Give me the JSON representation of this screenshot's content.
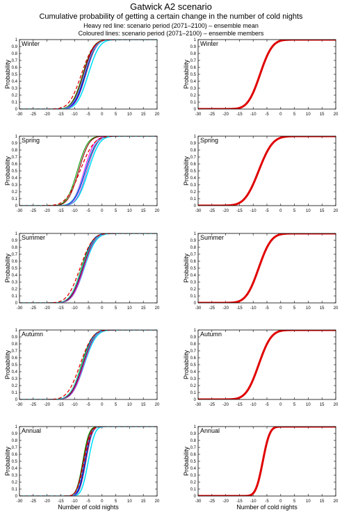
{
  "title": "Gatwick A2 scenario",
  "subtitle": "Cumulative probability of getting a certain change in the number of cold nights",
  "notes": [
    "Heavy red line: scenario period (2071–2100) – ensemble mean",
    "Coloured lines: scenario period (2071–2100) – ensemble members"
  ],
  "xlabel": "Number of cold nights",
  "ylabel": "Probability",
  "xlim": [
    -30,
    20
  ],
  "ylim": [
    0,
    1
  ],
  "x_ticks": [
    -30,
    -25,
    -20,
    -15,
    -10,
    -5,
    0,
    5,
    10,
    15,
    20
  ],
  "y_ticks": [
    0,
    0.1,
    0.2,
    0.3,
    0.4,
    0.5,
    0.6,
    0.7,
    0.8,
    0.9,
    1
  ],
  "mean_color": "#e00000",
  "member_colors": [
    "#00e0ff",
    "#000000",
    "#009900",
    "#ff00ff",
    "#0000ff",
    "#8b0000",
    "#9966cc",
    "#33cccc"
  ],
  "chart_data": [
    {
      "type": "line",
      "title": "Winter",
      "members": [
        {
          "color": "#00e0ff",
          "mu": -5.0,
          "s": 3.2
        },
        {
          "color": "#000000",
          "mu": -6.0,
          "s": 3.0
        },
        {
          "color": "#009900",
          "mu": -7.0,
          "s": 3.1
        },
        {
          "color": "#ff00ff",
          "mu": -6.5,
          "s": 3.0
        },
        {
          "color": "#0000ff",
          "mu": -6.2,
          "s": 3.0
        },
        {
          "color": "#8b0000",
          "mu": -6.8,
          "s": 3.1
        },
        {
          "color": "#9966cc",
          "mu": -5.8,
          "s": 3.0
        },
        {
          "color": "#33cccc",
          "mu": -6.4,
          "s": 3.2
        }
      ],
      "mean": {
        "mu": -7.5,
        "s": 3.5
      }
    },
    {
      "type": "line",
      "title": "Spring",
      "members": [
        {
          "color": "#00e0ff",
          "mu": -5.0,
          "s": 3.2
        },
        {
          "color": "#000000",
          "mu": -6.0,
          "s": 3.2
        },
        {
          "color": "#009900",
          "mu": -9.0,
          "s": 3.0
        },
        {
          "color": "#ff00ff",
          "mu": -6.5,
          "s": 3.0
        },
        {
          "color": "#0000ff",
          "mu": -6.0,
          "s": 3.1
        },
        {
          "color": "#8b0000",
          "mu": -8.5,
          "s": 3.0
        },
        {
          "color": "#9966cc",
          "mu": -5.5,
          "s": 3.0
        },
        {
          "color": "#33cccc",
          "mu": -6.2,
          "s": 3.2
        }
      ],
      "mean": {
        "mu": -8.0,
        "s": 4.0
      }
    },
    {
      "type": "line",
      "title": "Summer",
      "members": [
        {
          "color": "#00e0ff",
          "mu": -6.5,
          "s": 3.4
        },
        {
          "color": "#000000",
          "mu": -7.0,
          "s": 3.2
        },
        {
          "color": "#009900",
          "mu": -7.5,
          "s": 3.2
        },
        {
          "color": "#ff00ff",
          "mu": -6.8,
          "s": 3.2
        },
        {
          "color": "#0000ff",
          "mu": -7.2,
          "s": 3.1
        },
        {
          "color": "#8b0000",
          "mu": -7.0,
          "s": 3.3
        },
        {
          "color": "#9966cc",
          "mu": -6.6,
          "s": 3.2
        },
        {
          "color": "#33cccc",
          "mu": -7.3,
          "s": 3.4
        }
      ],
      "mean": {
        "mu": -8.0,
        "s": 3.6
      }
    },
    {
      "type": "line",
      "title": "Autumn",
      "members": [
        {
          "color": "#00e0ff",
          "mu": -6.5,
          "s": 3.4
        },
        {
          "color": "#000000",
          "mu": -7.0,
          "s": 3.2
        },
        {
          "color": "#009900",
          "mu": -7.5,
          "s": 3.2
        },
        {
          "color": "#ff00ff",
          "mu": -6.8,
          "s": 3.2
        },
        {
          "color": "#0000ff",
          "mu": -7.2,
          "s": 3.1
        },
        {
          "color": "#8b0000",
          "mu": -7.0,
          "s": 3.3
        },
        {
          "color": "#9966cc",
          "mu": -6.6,
          "s": 3.2
        },
        {
          "color": "#33cccc",
          "mu": -7.3,
          "s": 3.4
        }
      ],
      "mean": {
        "mu": -8.0,
        "s": 3.6
      }
    },
    {
      "type": "line",
      "title": "Annual",
      "members": [
        {
          "color": "#00e0ff",
          "mu": -5.0,
          "s": 1.9
        },
        {
          "color": "#000000",
          "mu": -6.0,
          "s": 1.8
        },
        {
          "color": "#009900",
          "mu": -7.0,
          "s": 1.8
        },
        {
          "color": "#ff00ff",
          "mu": -6.5,
          "s": 1.8
        },
        {
          "color": "#0000ff",
          "mu": -6.2,
          "s": 1.8
        },
        {
          "color": "#8b0000",
          "mu": -6.8,
          "s": 1.9
        },
        {
          "color": "#9966cc",
          "mu": -5.8,
          "s": 1.8
        },
        {
          "color": "#33cccc",
          "mu": -6.4,
          "s": 1.9
        }
      ],
      "mean": {
        "mu": -6.5,
        "s": 2.0
      }
    }
  ]
}
